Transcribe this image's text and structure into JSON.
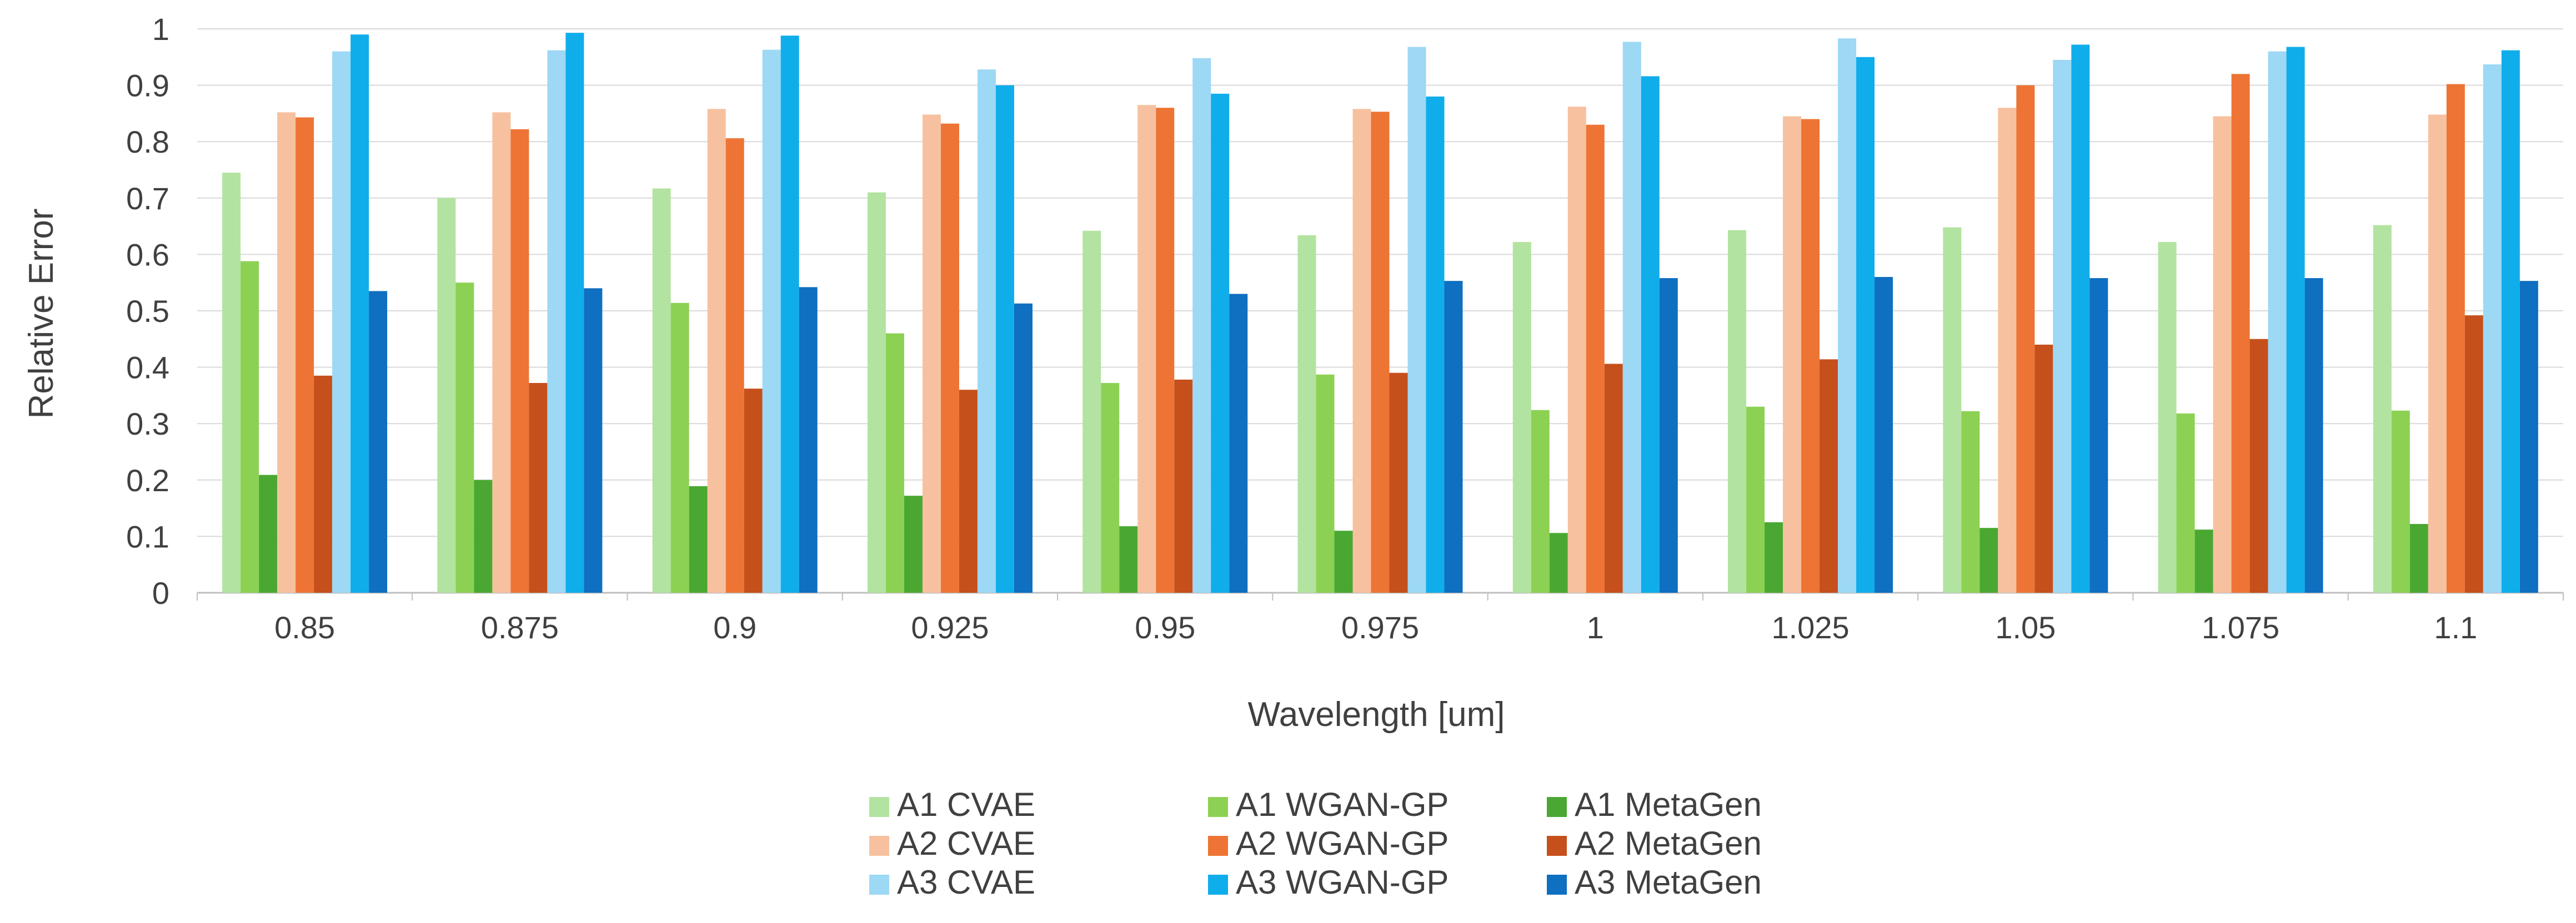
{
  "chart_data": {
    "type": "bar",
    "xlabel": "Wavelength [um]",
    "ylabel": "Relative Error",
    "ylim": [
      0,
      1
    ],
    "yticks": [
      "0",
      "0.1",
      "0.2",
      "0.3",
      "0.4",
      "0.5",
      "0.6",
      "0.7",
      "0.8",
      "0.9",
      "1"
    ],
    "grid": true,
    "legend_position": "bottom",
    "categories": [
      "0.85",
      "0.875",
      "0.9",
      "0.925",
      "0.95",
      "0.975",
      "1",
      "1.025",
      "1.05",
      "1.075",
      "1.1"
    ],
    "series": [
      {
        "name": "A1 CVAE",
        "color": "#b3e3a0",
        "values": [
          0.745,
          0.7,
          0.717,
          0.71,
          0.642,
          0.634,
          0.622,
          0.643,
          0.648,
          0.622,
          0.652
        ]
      },
      {
        "name": "A1 WGAN-GP",
        "color": "#8dd154",
        "values": [
          0.588,
          0.55,
          0.514,
          0.46,
          0.372,
          0.387,
          0.324,
          0.33,
          0.322,
          0.318,
          0.323
        ]
      },
      {
        "name": "A1 MetaGen",
        "color": "#4aa832",
        "values": [
          0.209,
          0.2,
          0.189,
          0.172,
          0.118,
          0.11,
          0.106,
          0.125,
          0.115,
          0.112,
          0.122
        ]
      },
      {
        "name": "A2 CVAE",
        "color": "#f7c1a0",
        "values": [
          0.852,
          0.852,
          0.858,
          0.848,
          0.865,
          0.858,
          0.862,
          0.845,
          0.86,
          0.845,
          0.848
        ]
      },
      {
        "name": "A2 WGAN-GP",
        "color": "#ed7434",
        "values": [
          0.843,
          0.822,
          0.806,
          0.832,
          0.86,
          0.853,
          0.83,
          0.84,
          0.9,
          0.92,
          0.902
        ]
      },
      {
        "name": "A2 MetaGen",
        "color": "#c5501c",
        "values": [
          0.385,
          0.372,
          0.362,
          0.36,
          0.378,
          0.39,
          0.406,
          0.414,
          0.44,
          0.45,
          0.492
        ]
      },
      {
        "name": "A3 CVAE",
        "color": "#9dd8f5",
        "values": [
          0.96,
          0.962,
          0.963,
          0.928,
          0.948,
          0.968,
          0.977,
          0.983,
          0.945,
          0.96,
          0.937
        ]
      },
      {
        "name": "A3 WGAN-GP",
        "color": "#10adeb",
        "values": [
          0.99,
          0.993,
          0.988,
          0.9,
          0.885,
          0.88,
          0.916,
          0.95,
          0.972,
          0.968,
          0.962
        ]
      },
      {
        "name": "A3 MetaGen",
        "color": "#0f6fc0",
        "values": [
          0.535,
          0.54,
          0.542,
          0.513,
          0.53,
          0.553,
          0.558,
          0.56,
          0.558,
          0.558,
          0.553
        ]
      }
    ]
  }
}
